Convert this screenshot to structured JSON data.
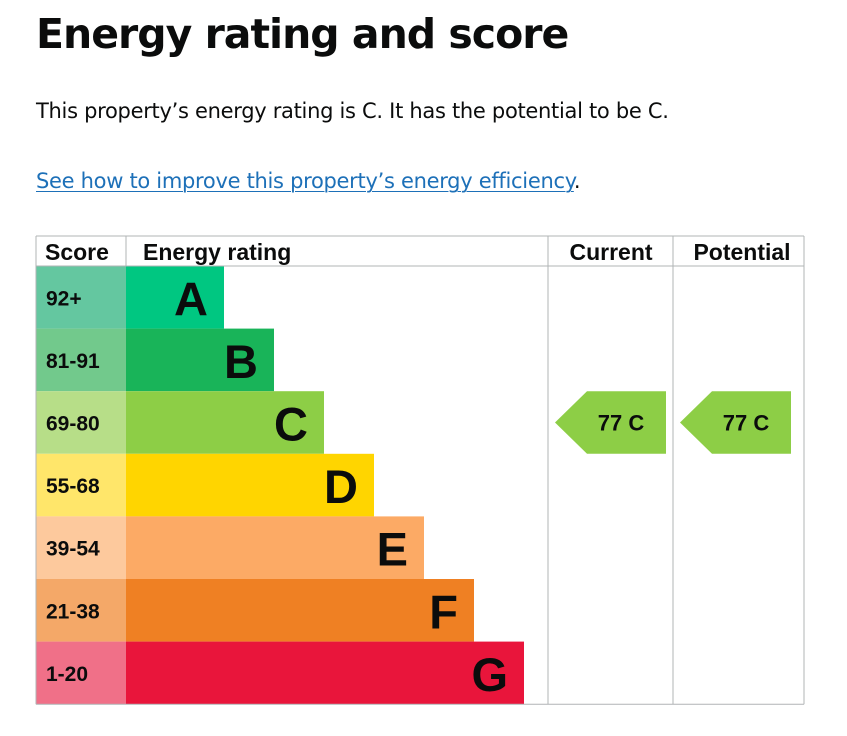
{
  "page": {
    "title": "Energy rating and score",
    "summary": "This property’s energy rating is C. It has the potential to be C.",
    "improve_link": "See how to improve this property’s energy efficiency",
    "improve_suffix": "."
  },
  "chart_data": {
    "type": "bar",
    "headers": {
      "score": "Score",
      "rating": "Energy rating",
      "current": "Current",
      "potential": "Potential"
    },
    "bands": [
      {
        "letter": "A",
        "range": "92+",
        "color": "#00c781",
        "score_color": "#64c7a0"
      },
      {
        "letter": "B",
        "range": "81-91",
        "color": "#19b459",
        "score_color": "#72c98c"
      },
      {
        "letter": "C",
        "range": "69-80",
        "color": "#8dce46",
        "score_color": "#b7de88"
      },
      {
        "letter": "D",
        "range": "55-68",
        "color": "#ffd500",
        "score_color": "#ffe66a"
      },
      {
        "letter": "E",
        "range": "39-54",
        "color": "#fcaa65",
        "score_color": "#fdc99d"
      },
      {
        "letter": "F",
        "range": "21-38",
        "color": "#ef8023",
        "score_color": "#f4a868"
      },
      {
        "letter": "G",
        "range": "1-20",
        "color": "#e9153b",
        "score_color": "#f07088"
      }
    ],
    "current": {
      "score": 77,
      "letter": "C",
      "label": "77  C",
      "color": "#8dce46"
    },
    "potential": {
      "score": 77,
      "letter": "C",
      "label": "77  C",
      "color": "#8dce46"
    }
  }
}
